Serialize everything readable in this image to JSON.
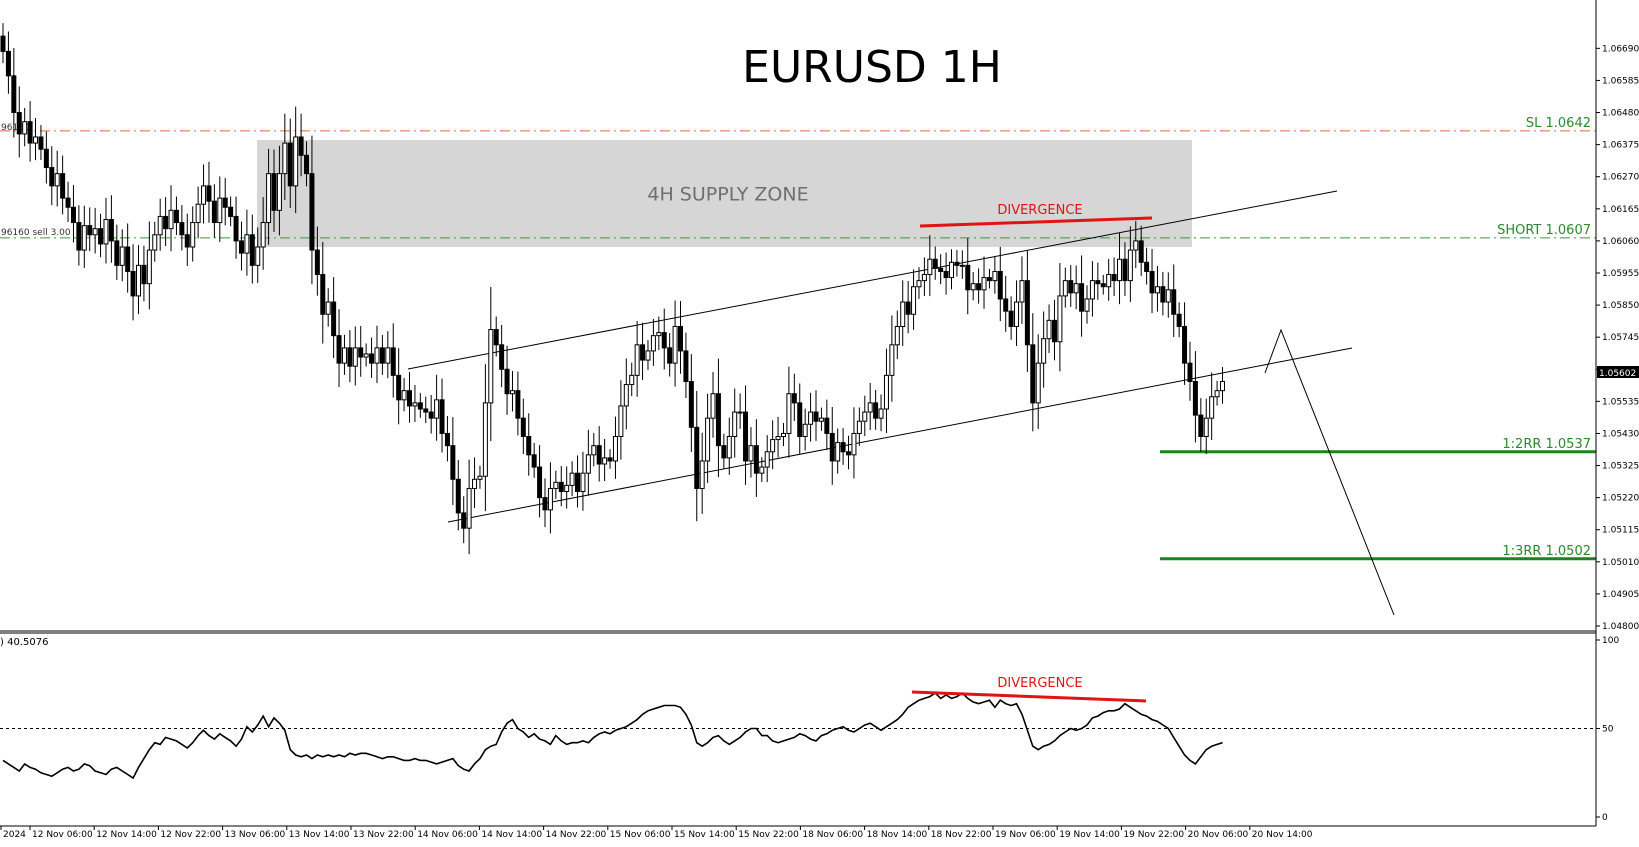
{
  "chart_data": [
    {
      "type": "candlestick",
      "title": "EURUSD 1H",
      "symbol": "EURUSD",
      "timeframe": "1H",
      "ylim": [
        1.048,
        1.0675
      ],
      "y_ticks": [
        "1.06690",
        "1.06585",
        "1.06480",
        "1.06375",
        "1.06270",
        "1.06165",
        "1.06060",
        "1.05955",
        "1.05850",
        "1.05745",
        "1.05640",
        "1.05535",
        "1.05430",
        "1.05325",
        "1.05220",
        "1.05115",
        "1.05010",
        "1.04905",
        "1.04800"
      ],
      "current_price": "1.05602",
      "x_ticks": [
        "2024",
        "12 Nov 06:00",
        "12 Nov 14:00",
        "12 Nov 22:00",
        "13 Nov 06:00",
        "13 Nov 14:00",
        "13 Nov 22:00",
        "14 Nov 06:00",
        "14 Nov 14:00",
        "14 Nov 22:00",
        "15 Nov 06:00",
        "15 Nov 14:00",
        "15 Nov 22:00",
        "18 Nov 06:00",
        "18 Nov 14:00",
        "18 Nov 22:00",
        "19 Nov 06:00",
        "19 Nov 14:00",
        "19 Nov 22:00",
        "20 Nov 06:00",
        "20 Nov 14:00"
      ],
      "candles_close": [
        1.0668,
        1.066,
        1.0648,
        1.0641,
        1.0645,
        1.0638,
        1.064,
        1.0636,
        1.063,
        1.0624,
        1.0628,
        1.062,
        1.0617,
        1.0612,
        1.0603,
        1.0611,
        1.0608,
        1.061,
        1.0605,
        1.0613,
        1.0606,
        1.0598,
        1.0604,
        1.0596,
        1.0588,
        1.0598,
        1.0592,
        1.0603,
        1.0608,
        1.0614,
        1.061,
        1.0616,
        1.0612,
        1.0608,
        1.0604,
        1.0612,
        1.0618,
        1.0624,
        1.0619,
        1.0612,
        1.062,
        1.0617,
        1.0614,
        1.0606,
        1.0602,
        1.0608,
        1.0598,
        1.0604,
        1.0612,
        1.0628,
        1.0616,
        1.0628,
        1.0638,
        1.0624,
        1.064,
        1.0634,
        1.0628,
        1.0603,
        1.0595,
        1.0582,
        1.0586,
        1.0575,
        1.0566,
        1.0571,
        1.0565,
        1.0571,
        1.0568,
        1.0569,
        1.0566,
        1.0571,
        1.0566,
        1.0571,
        1.0562,
        1.0554,
        1.0557,
        1.0552,
        1.0553,
        1.0551,
        1.055,
        1.0548,
        1.0554,
        1.0543,
        1.0539,
        1.0528,
        1.0517,
        1.0512,
        1.0525,
        1.0528,
        1.0529,
        1.0553,
        1.0577,
        1.0572,
        1.0564,
        1.0556,
        1.0557,
        1.0548,
        1.0542,
        1.0536,
        1.0532,
        1.0522,
        1.0518,
        1.0525,
        1.0527,
        1.0524,
        1.0526,
        1.053,
        1.0524,
        1.053,
        1.0536,
        1.0539,
        1.0533,
        1.0535,
        1.0534,
        1.0542,
        1.0552,
        1.0559,
        1.0562,
        1.0572,
        1.0567,
        1.057,
        1.0575,
        1.0576,
        1.0571,
        1.0566,
        1.0578,
        1.057,
        1.056,
        1.0545,
        1.0525,
        1.0534,
        1.0548,
        1.0556,
        1.0539,
        1.0535,
        1.0542,
        1.055,
        1.055,
        1.0534,
        1.0539,
        1.053,
        1.0532,
        1.0537,
        1.0541,
        1.0542,
        1.0543,
        1.0556,
        1.0553,
        1.0542,
        1.0546,
        1.055,
        1.0547,
        1.0548,
        1.0543,
        1.0534,
        1.054,
        1.0537,
        1.0536,
        1.0543,
        1.0547,
        1.055,
        1.0553,
        1.0548,
        1.0551,
        1.0562,
        1.0572,
        1.0578,
        1.0586,
        1.0582,
        1.0591,
        1.0593,
        1.0595,
        1.06,
        1.0597,
        1.0596,
        1.0594,
        1.0599,
        1.0598,
        1.0598,
        1.059,
        1.0592,
        1.059,
        1.0594,
        1.0593,
        1.0596,
        1.0587,
        1.0583,
        1.0578,
        1.0586,
        1.0593,
        1.0572,
        1.0553,
        1.0566,
        1.0574,
        1.058,
        1.0573,
        1.0588,
        1.0593,
        1.0589,
        1.0592,
        1.0583,
        1.0587,
        1.0593,
        1.0592,
        1.0591,
        1.0595,
        1.0593,
        1.06,
        1.0593,
        1.0603,
        1.0606,
        1.0599,
        1.0596,
        1.0589,
        1.0591,
        1.0586,
        1.059,
        1.0582,
        1.0578,
        1.0566,
        1.056,
        1.0549,
        1.0542,
        1.0548,
        1.0555,
        1.0557,
        1.056
      ],
      "annotations": {
        "supply_zone": {
          "label": "4H SUPPLY ZONE",
          "price_top": 1.0639,
          "price_bottom": 1.0604
        },
        "sl": {
          "label": "SL 1.0642",
          "price": 1.0642
        },
        "short": {
          "label": "SHORT 1.0607",
          "price": 1.0607
        },
        "rr2": {
          "label": "1:2RR 1.0537",
          "price": 1.0537
        },
        "rr3": {
          "label": "1:3RR 1.0502",
          "price": 1.0502
        },
        "divergence": {
          "label": "DIVERGENCE"
        },
        "left_labels": {
          "sl_fragment": "96160",
          "short_fragment": "96160 sell 3.00"
        }
      }
    },
    {
      "type": "line",
      "panel": "oscillator",
      "header_value": ") 40.5076",
      "ylim": [
        0,
        100
      ],
      "y_ticks": [
        "100",
        "50",
        "0"
      ],
      "level_line": 50,
      "values": [
        32,
        30,
        28,
        26,
        30,
        28,
        27,
        25,
        24,
        23,
        25,
        27,
        28,
        26,
        27,
        30,
        29,
        26,
        25,
        24,
        27,
        28,
        26,
        24,
        22,
        28,
        33,
        38,
        42,
        41,
        45,
        44,
        43,
        41,
        39,
        42,
        46,
        49,
        46,
        44,
        47,
        45,
        43,
        40,
        44,
        51,
        48,
        52,
        57,
        51,
        56,
        53,
        49,
        38,
        35,
        34,
        35,
        33,
        35,
        34,
        35,
        34,
        35,
        34,
        36,
        35,
        36,
        36,
        35,
        34,
        33,
        34,
        34,
        33,
        32,
        32,
        33,
        32,
        32,
        31,
        30,
        31,
        32,
        33,
        29,
        27,
        26,
        30,
        33,
        38,
        40,
        41,
        48,
        53,
        55,
        50,
        48,
        45,
        47,
        44,
        43,
        41,
        46,
        43,
        41,
        42,
        42,
        43,
        42,
        45,
        47,
        48,
        47,
        49,
        50,
        51,
        53,
        55,
        58,
        60,
        61,
        62,
        63,
        63,
        63,
        62,
        58,
        52,
        42,
        40,
        42,
        45,
        46,
        43,
        41,
        43,
        45,
        48,
        50,
        50,
        46,
        46,
        43,
        42,
        43,
        44,
        45,
        47,
        46,
        44,
        43,
        46,
        47,
        49,
        50,
        51,
        49,
        48,
        50,
        52,
        53,
        51,
        49,
        51,
        53,
        55,
        58,
        62,
        64,
        66,
        67,
        68,
        70,
        67,
        69,
        67,
        68,
        70,
        67,
        65,
        64,
        65,
        66,
        62,
        66,
        64,
        63,
        64,
        58,
        49,
        40,
        38,
        40,
        41,
        43,
        46,
        48,
        50,
        49,
        50,
        52,
        56,
        57,
        59,
        60,
        60,
        61,
        64,
        62,
        60,
        58,
        57,
        55,
        54,
        52,
        50,
        45,
        40,
        35,
        32,
        30,
        34,
        38,
        40,
        41,
        42
      ]
    }
  ]
}
